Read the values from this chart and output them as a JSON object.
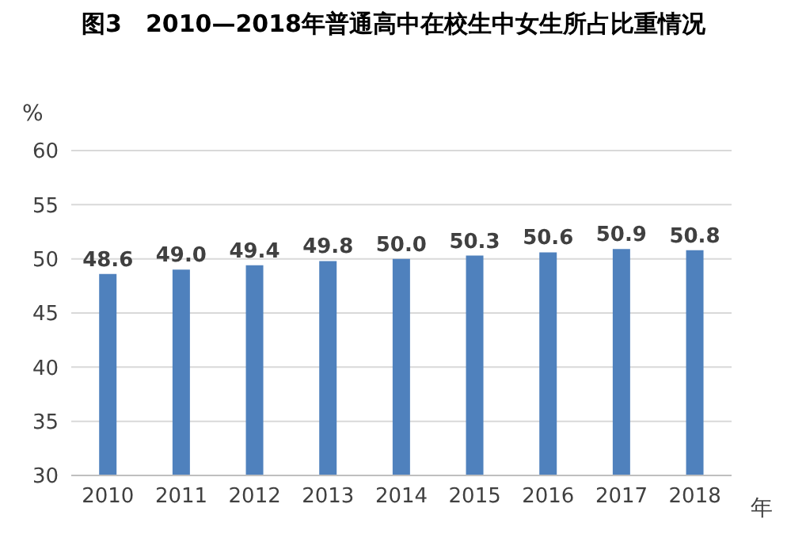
{
  "chart_data": {
    "type": "bar",
    "title": "图3　2010—2018年普通高中在校生中女生所占比重情况",
    "ylabel": "%",
    "xlabel": "年",
    "categories": [
      "2010",
      "2011",
      "2012",
      "2013",
      "2014",
      "2015",
      "2016",
      "2017",
      "2018"
    ],
    "values": [
      48.6,
      49.0,
      49.4,
      49.8,
      50.0,
      50.3,
      50.6,
      50.9,
      50.8
    ],
    "value_labels": [
      "48.6",
      "49.0",
      "49.4",
      "49.8",
      "50.0",
      "50.3",
      "50.6",
      "50.9",
      "50.8"
    ],
    "color": "#4f81bd",
    "ylim": [
      30,
      60
    ],
    "yticks": [
      30,
      35,
      40,
      45,
      50,
      55,
      60
    ],
    "grid": "y",
    "legend": false
  }
}
